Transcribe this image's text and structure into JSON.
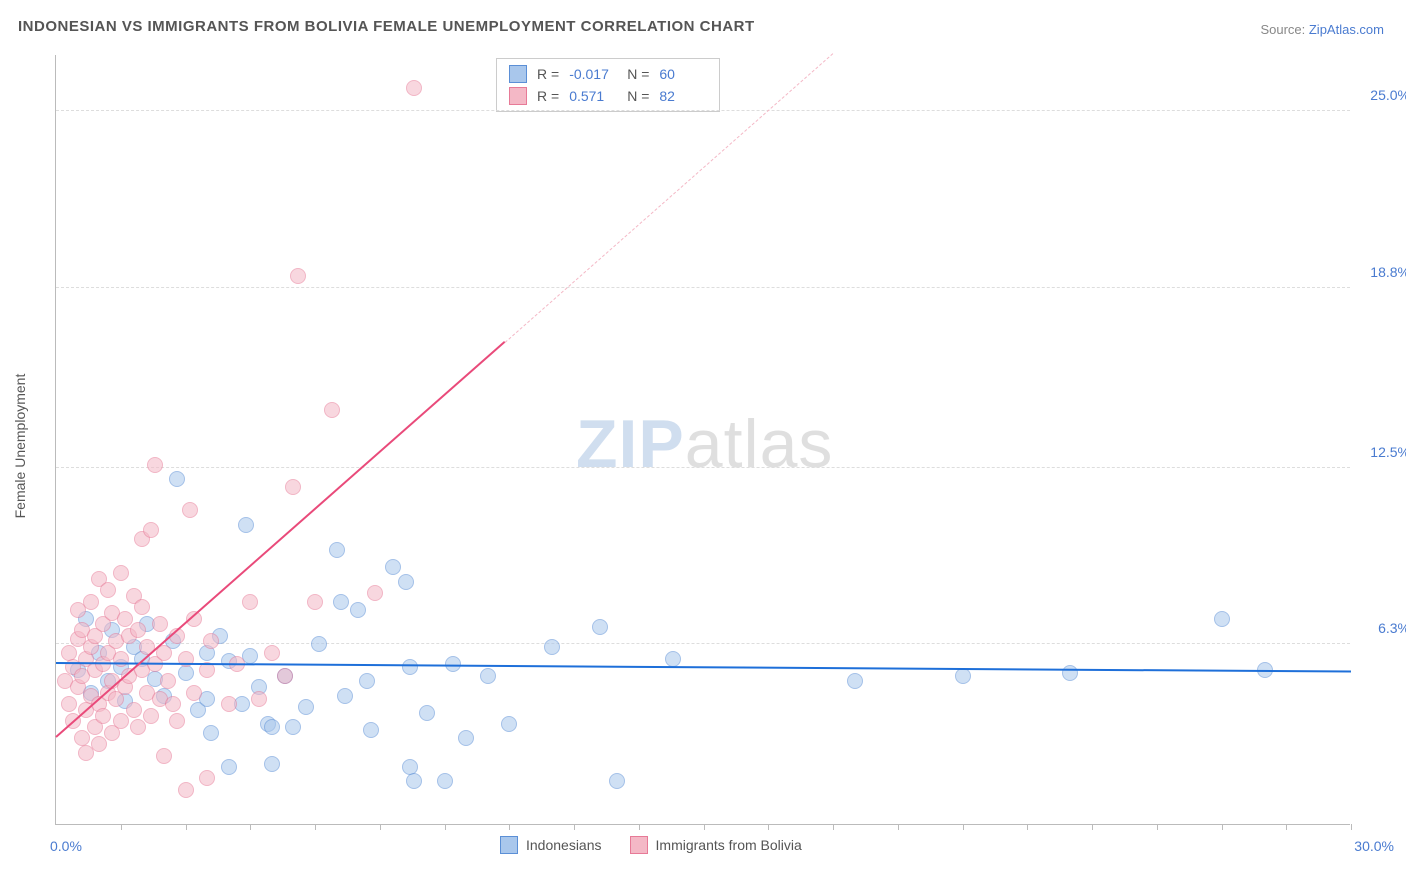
{
  "title": "INDONESIAN VS IMMIGRANTS FROM BOLIVIA FEMALE UNEMPLOYMENT CORRELATION CHART",
  "source_prefix": "Source: ",
  "source_name": "ZipAtlas.com",
  "y_axis_label": "Female Unemployment",
  "watermark": {
    "part1": "ZIP",
    "part2": "atlas"
  },
  "chart": {
    "type": "scatter",
    "background_color": "#ffffff",
    "grid_color": "#dddddd",
    "axis_color": "#bbbbbb",
    "tick_label_color": "#4a7bd0",
    "label_fontsize": 14,
    "title_fontsize": 15,
    "xlim": [
      0,
      30
    ],
    "ylim": [
      0,
      27
    ],
    "x_ticks_minor_step": 1.5,
    "y_gridlines": [
      6.3,
      12.5,
      18.8,
      25.0
    ],
    "y_tick_labels": [
      "6.3%",
      "12.5%",
      "18.8%",
      "25.0%"
    ],
    "x_axis_min_label": "0.0%",
    "x_axis_max_label": "30.0%",
    "marker_radius": 8,
    "marker_opacity": 0.55,
    "series": [
      {
        "name": "Indonesians",
        "color_fill": "#a9c7ec",
        "color_stroke": "#5b8fd6",
        "trend_color": "#1e6fd9",
        "R": "-0.017",
        "N": "60",
        "trend": {
          "x1": 0,
          "y1": 5.6,
          "x2": 30,
          "y2": 5.3
        },
        "points": [
          [
            0.5,
            5.4
          ],
          [
            0.7,
            7.2
          ],
          [
            0.8,
            4.6
          ],
          [
            1.0,
            6.0
          ],
          [
            1.2,
            5.0
          ],
          [
            1.3,
            6.8
          ],
          [
            1.5,
            5.5
          ],
          [
            1.6,
            4.3
          ],
          [
            1.8,
            6.2
          ],
          [
            2.0,
            5.8
          ],
          [
            2.1,
            7.0
          ],
          [
            2.3,
            5.1
          ],
          [
            2.5,
            4.5
          ],
          [
            2.7,
            6.4
          ],
          [
            2.8,
            12.1
          ],
          [
            3.0,
            5.3
          ],
          [
            3.3,
            4.0
          ],
          [
            3.5,
            6.0
          ],
          [
            3.5,
            4.4
          ],
          [
            3.6,
            3.2
          ],
          [
            3.8,
            6.6
          ],
          [
            4.0,
            2.0
          ],
          [
            4.0,
            5.7
          ],
          [
            4.3,
            4.2
          ],
          [
            4.4,
            10.5
          ],
          [
            4.5,
            5.9
          ],
          [
            4.7,
            4.8
          ],
          [
            4.9,
            3.5
          ],
          [
            5.0,
            2.1
          ],
          [
            5.0,
            3.4
          ],
          [
            5.3,
            5.2
          ],
          [
            5.5,
            3.4
          ],
          [
            5.8,
            4.1
          ],
          [
            6.1,
            6.3
          ],
          [
            6.5,
            9.6
          ],
          [
            6.6,
            7.8
          ],
          [
            6.7,
            4.5
          ],
          [
            7.0,
            7.5
          ],
          [
            7.2,
            5.0
          ],
          [
            7.3,
            3.3
          ],
          [
            7.8,
            9.0
          ],
          [
            8.1,
            8.5
          ],
          [
            8.2,
            5.5
          ],
          [
            8.2,
            2.0
          ],
          [
            8.3,
            1.5
          ],
          [
            8.6,
            3.9
          ],
          [
            9.0,
            1.5
          ],
          [
            9.2,
            5.6
          ],
          [
            9.5,
            3.0
          ],
          [
            10.0,
            5.2
          ],
          [
            10.5,
            3.5
          ],
          [
            11.5,
            6.2
          ],
          [
            12.6,
            6.9
          ],
          [
            13.0,
            1.5
          ],
          [
            14.3,
            5.8
          ],
          [
            18.5,
            5.0
          ],
          [
            21.0,
            5.2
          ],
          [
            23.5,
            5.3
          ],
          [
            27.0,
            7.2
          ],
          [
            28.0,
            5.4
          ]
        ]
      },
      {
        "name": "Immigrants from Bolivia",
        "color_fill": "#f4b8c6",
        "color_stroke": "#e77a97",
        "trend_color": "#e94a7a",
        "R": "0.571",
        "N": "82",
        "trend": {
          "x1": 0,
          "y1": 3.0,
          "x2": 18,
          "y2": 27.0
        },
        "trend_solid_until_x": 10.4,
        "points": [
          [
            0.2,
            5.0
          ],
          [
            0.3,
            6.0
          ],
          [
            0.3,
            4.2
          ],
          [
            0.4,
            5.5
          ],
          [
            0.4,
            3.6
          ],
          [
            0.5,
            6.5
          ],
          [
            0.5,
            4.8
          ],
          [
            0.5,
            7.5
          ],
          [
            0.6,
            5.2
          ],
          [
            0.6,
            3.0
          ],
          [
            0.6,
            6.8
          ],
          [
            0.7,
            4.0
          ],
          [
            0.7,
            5.8
          ],
          [
            0.7,
            2.5
          ],
          [
            0.8,
            6.2
          ],
          [
            0.8,
            4.5
          ],
          [
            0.8,
            7.8
          ],
          [
            0.9,
            3.4
          ],
          [
            0.9,
            5.4
          ],
          [
            0.9,
            6.6
          ],
          [
            1.0,
            4.2
          ],
          [
            1.0,
            8.6
          ],
          [
            1.0,
            2.8
          ],
          [
            1.1,
            5.6
          ],
          [
            1.1,
            7.0
          ],
          [
            1.1,
            3.8
          ],
          [
            1.2,
            4.6
          ],
          [
            1.2,
            6.0
          ],
          [
            1.2,
            8.2
          ],
          [
            1.3,
            5.0
          ],
          [
            1.3,
            3.2
          ],
          [
            1.3,
            7.4
          ],
          [
            1.4,
            4.4
          ],
          [
            1.4,
            6.4
          ],
          [
            1.5,
            8.8
          ],
          [
            1.5,
            5.8
          ],
          [
            1.5,
            3.6
          ],
          [
            1.6,
            7.2
          ],
          [
            1.6,
            4.8
          ],
          [
            1.7,
            6.6
          ],
          [
            1.7,
            5.2
          ],
          [
            1.8,
            4.0
          ],
          [
            1.8,
            8.0
          ],
          [
            1.9,
            6.8
          ],
          [
            1.9,
            3.4
          ],
          [
            2.0,
            5.4
          ],
          [
            2.0,
            7.6
          ],
          [
            2.0,
            10.0
          ],
          [
            2.1,
            4.6
          ],
          [
            2.1,
            6.2
          ],
          [
            2.2,
            10.3
          ],
          [
            2.2,
            3.8
          ],
          [
            2.3,
            5.6
          ],
          [
            2.3,
            12.6
          ],
          [
            2.4,
            4.4
          ],
          [
            2.4,
            7.0
          ],
          [
            2.5,
            6.0
          ],
          [
            2.5,
            2.4
          ],
          [
            2.6,
            5.0
          ],
          [
            2.7,
            4.2
          ],
          [
            2.8,
            6.6
          ],
          [
            2.8,
            3.6
          ],
          [
            3.0,
            5.8
          ],
          [
            3.0,
            1.2
          ],
          [
            3.1,
            11.0
          ],
          [
            3.2,
            4.6
          ],
          [
            3.2,
            7.2
          ],
          [
            3.5,
            5.4
          ],
          [
            3.5,
            1.6
          ],
          [
            3.6,
            6.4
          ],
          [
            4.0,
            4.2
          ],
          [
            4.2,
            5.6
          ],
          [
            4.5,
            7.8
          ],
          [
            4.7,
            4.4
          ],
          [
            5.0,
            6.0
          ],
          [
            5.3,
            5.2
          ],
          [
            5.5,
            11.8
          ],
          [
            5.6,
            19.2
          ],
          [
            6.0,
            7.8
          ],
          [
            6.4,
            14.5
          ],
          [
            7.4,
            8.1
          ],
          [
            8.3,
            25.8
          ]
        ]
      }
    ]
  },
  "bottom_legend": [
    {
      "label": "Indonesians",
      "fill": "#a9c7ec",
      "stroke": "#5b8fd6"
    },
    {
      "label": "Immigrants from Bolivia",
      "fill": "#f4b8c6",
      "stroke": "#e77a97"
    }
  ]
}
